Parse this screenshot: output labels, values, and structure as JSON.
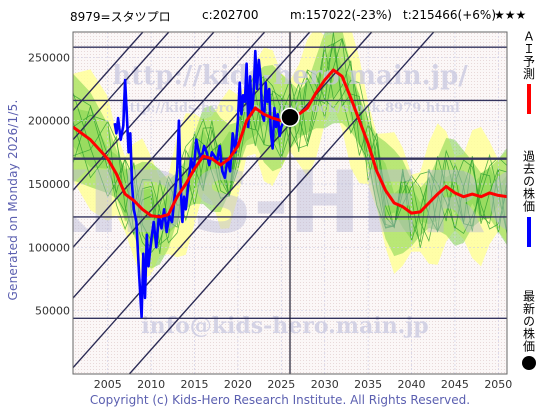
{
  "header": {
    "code": "8979=スタツプロ",
    "current": "c:202700",
    "min": "m:157022(-23%)",
    "target": "t:215466(+6%)",
    "stars": "★★★"
  },
  "side_label": "Generated on Monday 2026/1/5.",
  "footer": "Copyright (c) Kids-Hero Research Institute. All Rights Reserved.",
  "watermarks": [
    "http://kids-hero.main.jp/",
    "http://kids-hero.main.jp/stock/stock.8979.html",
    "KIDS-HERO",
    "info@kids-hero.main.jp"
  ],
  "legend": [
    {
      "label": "ＡＩ予測",
      "color": "#ff0000",
      "marker": "line"
    },
    {
      "label": "過去の株価",
      "color": "#0000ff",
      "marker": "line"
    },
    {
      "label": "最新の株価",
      "color": "#000000",
      "marker": "dot"
    }
  ],
  "colors": {
    "band_light": "#ffff99",
    "band_green": "#7fd34f",
    "band_green_dark": "#2ea02e",
    "level_line": "#33335e",
    "trend_line": "#2b2b55"
  },
  "chart_data": {
    "type": "line",
    "x_ticks": [
      2005,
      2010,
      2015,
      2020,
      2025,
      2030,
      2035,
      2040,
      2045,
      2050
    ],
    "y_ticks": [
      50000,
      100000,
      150000,
      200000,
      250000
    ],
    "y_tick_labels": [
      "50000",
      "100000",
      "150000",
      "200000",
      "250000"
    ],
    "xlim": [
      2001,
      2051
    ],
    "ylim": [
      0,
      270000
    ],
    "grid": true,
    "level_lines": [
      258000,
      216000,
      170000,
      124000,
      44000
    ],
    "trend_lines": [
      {
        "x": [
          2001,
          2051
        ],
        "y": [
          5000,
          390000
        ]
      },
      {
        "x": [
          2001,
          2051
        ],
        "y": [
          60000,
          445000
        ]
      },
      {
        "x": [
          2001,
          2051
        ],
        "y": [
          100000,
          485000
        ]
      },
      {
        "x": [
          2001,
          2051
        ],
        "y": [
          145000,
          530000
        ]
      },
      {
        "x": [
          2001,
          2051
        ],
        "y": [
          185000,
          570000
        ]
      },
      {
        "x": [
          2001,
          2051
        ],
        "y": [
          208000,
          593000
        ]
      },
      {
        "x": [
          2001,
          2051
        ],
        "y": [
          -50000,
          335000
        ]
      }
    ],
    "latest": {
      "x": 2026.0,
      "y": 202700
    },
    "latest_vline_x": 2026.0,
    "series": [
      {
        "name": "過去の株価",
        "color": "#0000ff",
        "x": [
          2005.8,
          2006.0,
          2006.2,
          2006.5,
          2006.8,
          2007.0,
          2007.2,
          2007.4,
          2007.6,
          2007.8,
          2008.0,
          2008.3,
          2008.6,
          2008.9,
          2009.1,
          2009.3,
          2009.5,
          2009.7,
          2010.0,
          2010.3,
          2010.6,
          2010.9,
          2011.2,
          2011.5,
          2011.8,
          2012.1,
          2012.4,
          2012.7,
          2013.0,
          2013.2,
          2013.4,
          2013.6,
          2013.8,
          2014.0,
          2014.3,
          2014.6,
          2014.9,
          2015.2,
          2015.5,
          2015.8,
          2016.1,
          2016.4,
          2016.7,
          2017.0,
          2017.3,
          2017.6,
          2017.9,
          2018.2,
          2018.5,
          2018.8,
          2019.1,
          2019.4,
          2019.7,
          2020.0,
          2020.2,
          2020.4,
          2020.6,
          2020.8,
          2021.0,
          2021.2,
          2021.4,
          2021.6,
          2021.8,
          2022.0,
          2022.2,
          2022.4,
          2022.6,
          2022.8,
          2023.0,
          2023.2,
          2023.4,
          2023.6,
          2023.8,
          2024.0,
          2024.2,
          2024.4,
          2024.6,
          2024.8,
          2025.0,
          2025.3,
          2025.6,
          2025.9
        ],
        "y": [
          198000,
          190000,
          202000,
          185000,
          196000,
          232000,
          205000,
          175000,
          190000,
          150000,
          130000,
          120000,
          80000,
          45000,
          95000,
          60000,
          110000,
          85000,
          105000,
          120000,
          100000,
          125000,
          115000,
          130000,
          112000,
          125000,
          120000,
          140000,
          160000,
          200000,
          150000,
          120000,
          140000,
          130000,
          150000,
          170000,
          160000,
          185000,
          175000,
          170000,
          180000,
          175000,
          165000,
          175000,
          172000,
          168000,
          180000,
          160000,
          155000,
          170000,
          160000,
          190000,
          175000,
          200000,
          230000,
          205000,
          220000,
          215000,
          245000,
          195000,
          235000,
          205000,
          220000,
          255000,
          225000,
          248000,
          235000,
          205000,
          200000,
          230000,
          215000,
          225000,
          190000,
          178000,
          210000,
          195000,
          205000,
          188000,
          195000,
          200000,
          205000,
          202700
        ]
      },
      {
        "name": "ＡＩ予測",
        "color": "#ff0000",
        "x": [
          2001,
          2003,
          2005,
          2006,
          2007,
          2008,
          2009,
          2010,
          2011,
          2012,
          2013,
          2014,
          2015,
          2016,
          2017,
          2018,
          2019,
          2020,
          2021,
          2022,
          2023,
          2024,
          2025,
          2026,
          2027,
          2028,
          2029,
          2030,
          2031,
          2032,
          2033,
          2034,
          2035,
          2036,
          2037,
          2038,
          2039,
          2040,
          2041,
          2042,
          2043,
          2044,
          2045,
          2046,
          2047,
          2048,
          2049,
          2050,
          2051
        ],
        "y": [
          195000,
          185000,
          170000,
          158000,
          142000,
          137000,
          130000,
          125000,
          124000,
          126000,
          140000,
          150000,
          162000,
          172000,
          170000,
          165000,
          170000,
          180000,
          200000,
          210000,
          205000,
          202000,
          200000,
          204000,
          205000,
          210000,
          222000,
          232000,
          240000,
          235000,
          218000,
          200000,
          182000,
          160000,
          145000,
          135000,
          132000,
          127000,
          128000,
          135000,
          142000,
          148000,
          143000,
          140000,
          142000,
          140000,
          143000,
          141000,
          140000
        ]
      }
    ]
  }
}
